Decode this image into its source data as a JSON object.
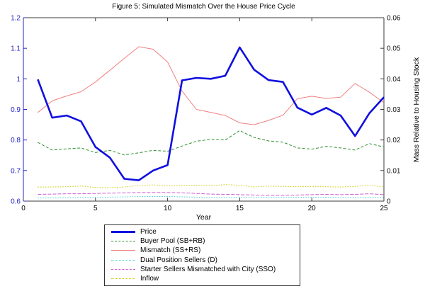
{
  "chart_data": {
    "type": "line",
    "title": "Figure 5: Simulated Mismatch Over the House Price Cycle",
    "xlabel": "Year",
    "ylabel_right": "Mass Relative to Housing Stock",
    "legend_position": "bottom",
    "grid": false,
    "x_axis": {
      "range": [
        0,
        25
      ],
      "ticks": [
        0,
        5,
        10,
        15,
        20,
        25
      ],
      "tick_labels": [
        "0",
        "5",
        "10",
        "15",
        "20",
        "25"
      ]
    },
    "y_axis_left": {
      "range": [
        0.6,
        1.2
      ],
      "ticks": [
        0.6,
        0.7,
        0.8,
        0.9,
        1.0,
        1.1,
        1.2
      ],
      "tick_labels": [
        "0.6",
        "0.7",
        "0.8",
        "0.9",
        "1",
        "1.1",
        "1.2"
      ],
      "color": "#2424C8"
    },
    "y_axis_right": {
      "range": [
        0,
        0.06
      ],
      "ticks": [
        0,
        0.01,
        0.02,
        0.03,
        0.04,
        0.05,
        0.06
      ],
      "tick_labels": [
        "0",
        "0.01",
        "0.02",
        "0.03",
        "0.04",
        "0.05",
        "0.06"
      ],
      "color": "#111111"
    },
    "x": [
      1,
      2,
      3,
      4,
      5,
      6,
      7,
      8,
      9,
      10,
      11,
      12,
      13,
      14,
      15,
      16,
      17,
      18,
      19,
      20,
      21,
      22,
      23,
      24,
      25
    ],
    "series": [
      {
        "name": "Price",
        "axis": "left",
        "color": "#0F0FE0",
        "width": 2.6,
        "dash": "",
        "values": [
          0.998,
          0.873,
          0.88,
          0.861,
          0.777,
          0.742,
          0.673,
          0.668,
          0.7,
          0.718,
          0.995,
          1.003,
          1.0,
          1.01,
          1.103,
          1.03,
          0.996,
          0.99,
          0.906,
          0.883,
          0.905,
          0.88,
          0.813,
          0.888,
          0.94
        ]
      },
      {
        "name": "Buyer Pool (SB+RB)",
        "axis": "right",
        "color": "#2F8F2F",
        "width": 1,
        "dash": "4,2.5",
        "values": [
          0.0192,
          0.0167,
          0.0171,
          0.0174,
          0.0159,
          0.0166,
          0.0151,
          0.0158,
          0.0166,
          0.0163,
          0.018,
          0.0196,
          0.0202,
          0.02,
          0.0231,
          0.0208,
          0.0197,
          0.0193,
          0.0174,
          0.017,
          0.0179,
          0.0174,
          0.0167,
          0.0188,
          0.0177
        ]
      },
      {
        "name": "Mismatch (SS+RS)",
        "axis": "right",
        "color": "#F08080",
        "width": 1,
        "dash": "",
        "values": [
          0.029,
          0.0328,
          0.0344,
          0.0358,
          0.039,
          0.0428,
          0.0467,
          0.0505,
          0.0497,
          0.0455,
          0.036,
          0.03,
          0.029,
          0.028,
          0.0256,
          0.025,
          0.0264,
          0.0281,
          0.0335,
          0.0343,
          0.0336,
          0.034,
          0.0385,
          0.0356,
          0.0322
        ]
      },
      {
        "name": "Dual Position Sellers (D)",
        "axis": "right",
        "color": "#45CFCF",
        "width": 1,
        "dash": "1.5,2",
        "values": [
          0.001,
          0.0011,
          0.0011,
          0.0012,
          0.0012,
          0.0013,
          0.0014,
          0.0015,
          0.0015,
          0.0015,
          0.0014,
          0.0013,
          0.0012,
          0.0012,
          0.0013,
          0.0012,
          0.0012,
          0.0012,
          0.0012,
          0.0013,
          0.0012,
          0.0012,
          0.0012,
          0.0013,
          0.0012
        ]
      },
      {
        "name": "Starter Sellers Mismatched with City (SSO)",
        "axis": "right",
        "color": "#CE5FCE",
        "width": 1,
        "dash": "5,2",
        "values": [
          0.0022,
          0.0023,
          0.0024,
          0.0024,
          0.0025,
          0.0026,
          0.0027,
          0.0028,
          0.0028,
          0.0028,
          0.0027,
          0.0025,
          0.0023,
          0.0022,
          0.0021,
          0.002,
          0.0019,
          0.0019,
          0.002,
          0.0021,
          0.0022,
          0.0021,
          0.0022,
          0.0024,
          0.0021
        ]
      },
      {
        "name": "Inflow",
        "axis": "right",
        "color": "#C9C900",
        "width": 1,
        "dash": "1.5,2",
        "values": [
          0.0046,
          0.0046,
          0.0047,
          0.0049,
          0.0045,
          0.0044,
          0.0046,
          0.0051,
          0.0053,
          0.005,
          0.0051,
          0.0052,
          0.0051,
          0.0054,
          0.0052,
          0.0046,
          0.0049,
          0.0048,
          0.0047,
          0.0048,
          0.0047,
          0.0046,
          0.0048,
          0.0052,
          0.0046
        ]
      }
    ]
  }
}
